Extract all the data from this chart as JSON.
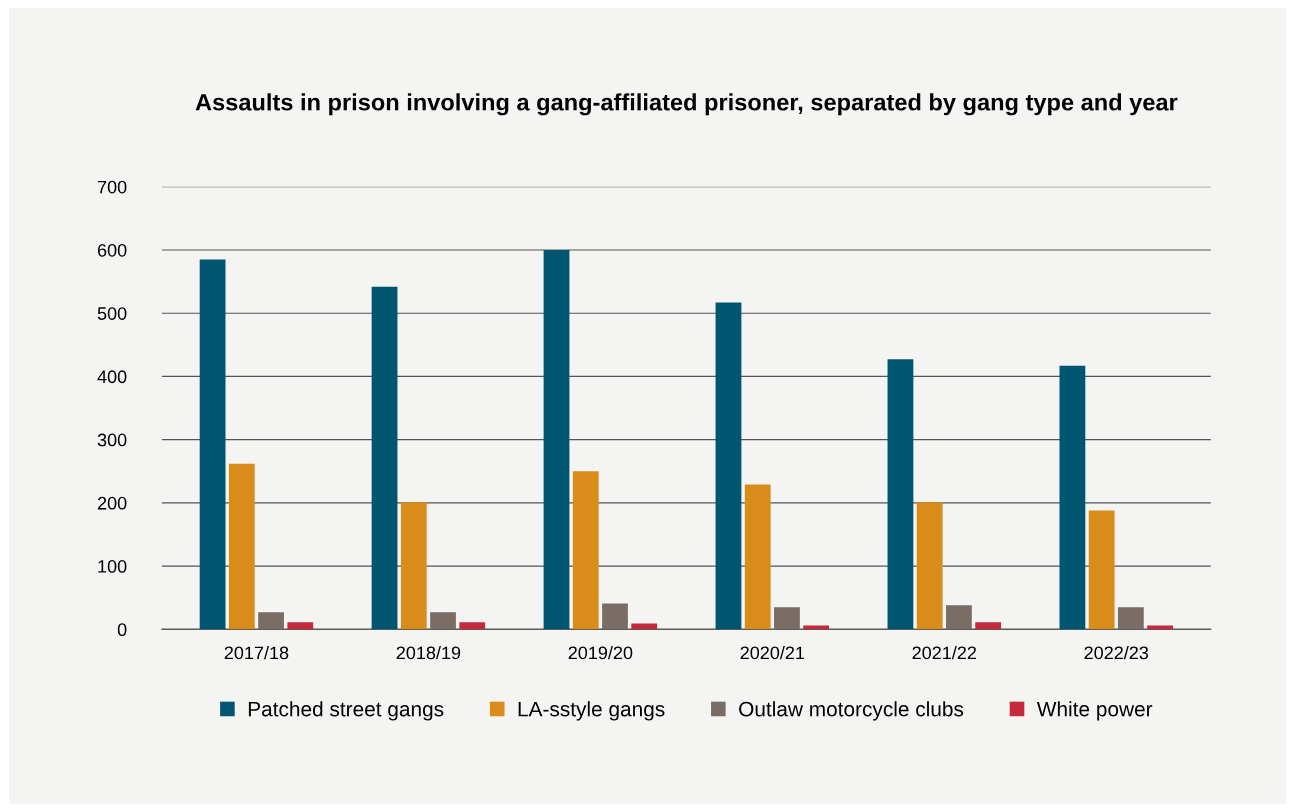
{
  "chart_data": {
    "type": "bar",
    "title": "Assaults in prison involving a gang-affiliated prisoner, separated by gang type and year",
    "categories": [
      "2017/18",
      "2018/19",
      "2019/20",
      "2020/21",
      "2021/22",
      "2022/23"
    ],
    "series": [
      {
        "name": "Patched street gangs",
        "color": "#005670",
        "values": [
          585,
          542,
          600,
          517,
          427,
          417
        ]
      },
      {
        "name": "LA-sstyle gangs",
        "color": "#d98c1a",
        "values": [
          262,
          201,
          250,
          229,
          201,
          188
        ]
      },
      {
        "name": "Outlaw motorcycle clubs",
        "color": "#7a6d66",
        "values": [
          27,
          27,
          41,
          35,
          38,
          35
        ]
      },
      {
        "name": "White power",
        "color": "#c8283c",
        "values": [
          11,
          11,
          9,
          6,
          11,
          6
        ]
      }
    ],
    "ylim": [
      0,
      700
    ],
    "yticks": [
      0,
      100,
      200,
      300,
      400,
      500,
      600,
      700
    ],
    "grid": "y",
    "legend": "bottom"
  }
}
